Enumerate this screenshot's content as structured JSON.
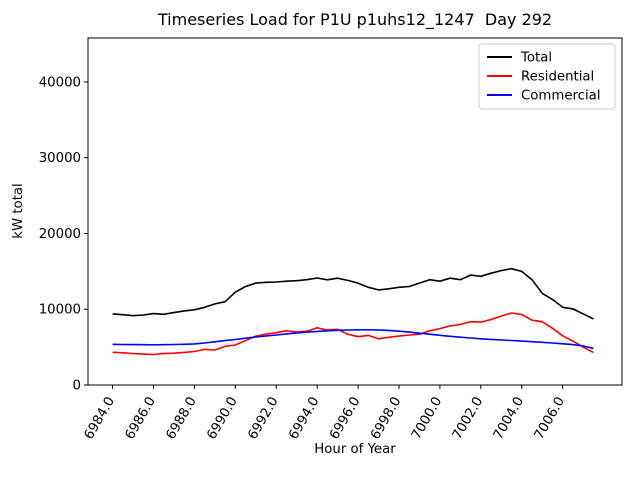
{
  "chart_data": {
    "type": "line",
    "title": "Timeseries Load for P1U p1uhs12_1247  Day 292",
    "xlabel": "Hour of Year",
    "ylabel": "kW total",
    "xlim": [
      6982.8,
      7008.9
    ],
    "ylim": [
      0,
      45800
    ],
    "grid": false,
    "legend_position": "upper right",
    "xticks": [
      6984,
      6986,
      6988,
      6990,
      6992,
      6994,
      6996,
      6998,
      7000,
      7002,
      7004,
      7006
    ],
    "xtick_labels": [
      "6984.0",
      "6986.0",
      "6988.0",
      "6990.0",
      "6992.0",
      "6994.0",
      "6996.0",
      "6998.0",
      "7000.0",
      "7002.0",
      "7004.0",
      "7006.0"
    ],
    "yticks": [
      0,
      10000,
      20000,
      30000,
      40000
    ],
    "ytick_labels": [
      "0",
      "10000",
      "20000",
      "30000",
      "40000"
    ],
    "x": [
      6984.0,
      6984.5,
      6985.0,
      6985.5,
      6986.0,
      6986.5,
      6987.0,
      6987.5,
      6988.0,
      6988.5,
      6989.0,
      6989.5,
      6990.0,
      6990.5,
      6991.0,
      6991.5,
      6992.0,
      6992.5,
      6993.0,
      6993.5,
      6994.0,
      6994.5,
      6995.0,
      6995.5,
      6996.0,
      6996.5,
      6997.0,
      6997.5,
      6998.0,
      6998.5,
      6999.0,
      6999.5,
      7000.0,
      7000.5,
      7001.0,
      7001.5,
      7002.0,
      7002.5,
      7003.0,
      7003.5,
      7004.0,
      7004.5,
      7005.0,
      7005.5,
      7006.0,
      7006.5,
      7007.0,
      7007.5
    ],
    "series": [
      {
        "name": "Total",
        "color": "#000000",
        "values": [
          9380,
          9280,
          9150,
          9240,
          9420,
          9330,
          9550,
          9780,
          9920,
          10260,
          10700,
          11000,
          12250,
          13000,
          13450,
          13550,
          13600,
          13700,
          13760,
          13900,
          14120,
          13880,
          14100,
          13800,
          13430,
          12900,
          12550,
          12700,
          12900,
          13000,
          13450,
          13900,
          13700,
          14100,
          13900,
          14500,
          14350,
          14750,
          15100,
          15350,
          15000,
          13900,
          12100,
          11300,
          10250,
          10050,
          9400,
          8720
        ]
      },
      {
        "name": "Residential",
        "color": "#ff0000",
        "values": [
          4320,
          4250,
          4150,
          4080,
          4020,
          4150,
          4200,
          4300,
          4420,
          4700,
          4620,
          5100,
          5280,
          5850,
          6450,
          6700,
          6900,
          7150,
          7000,
          7100,
          7550,
          7250,
          7350,
          6700,
          6380,
          6550,
          6100,
          6300,
          6450,
          6600,
          6700,
          7150,
          7450,
          7800,
          8000,
          8350,
          8300,
          8650,
          9100,
          9500,
          9300,
          8550,
          8350,
          7500,
          6500,
          5800,
          5000,
          4300
        ]
      },
      {
        "name": "Commercial",
        "color": "#0000ff",
        "values": [
          5370,
          5350,
          5330,
          5320,
          5310,
          5320,
          5340,
          5370,
          5430,
          5540,
          5700,
          5860,
          6010,
          6180,
          6330,
          6470,
          6600,
          6740,
          6870,
          6980,
          7080,
          7160,
          7220,
          7260,
          7280,
          7280,
          7260,
          7200,
          7100,
          6980,
          6840,
          6700,
          6560,
          6430,
          6310,
          6200,
          6100,
          6020,
          5940,
          5870,
          5790,
          5710,
          5630,
          5540,
          5440,
          5330,
          5150,
          4850
        ]
      }
    ]
  }
}
